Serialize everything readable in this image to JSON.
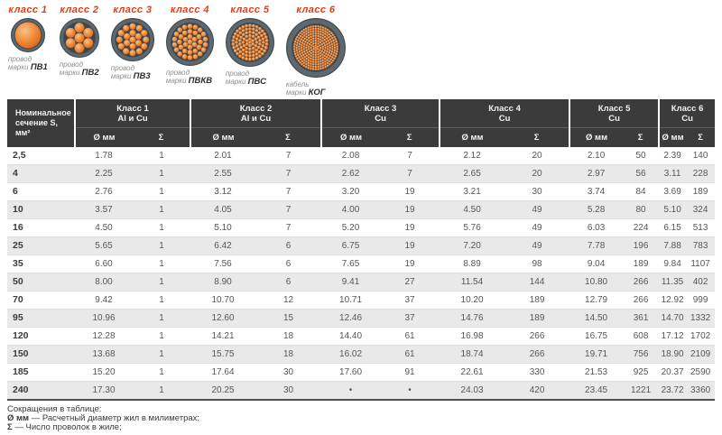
{
  "colors": {
    "class_label_red": "#e63c12",
    "header_bg": "#3b3b3b",
    "row_alt_gray": "#e9e9e9",
    "copper_orange": "#ef8a3a",
    "insulation_gray": "#5e696f"
  },
  "wire_classes": [
    {
      "label": "класс 1",
      "icon": "wire-cross-section-icon",
      "caption_line1": "провод",
      "caption_word": "марки",
      "mark": "ПВ1",
      "strand_rings": 1,
      "size": 38
    },
    {
      "label": "класс 2",
      "icon": "wire-cross-section-icon",
      "caption_line1": "провод",
      "caption_word": "марки",
      "mark": "ПВ2",
      "strand_rings": 2,
      "size": 44
    },
    {
      "label": "класс 3",
      "icon": "wire-cross-section-icon",
      "caption_line1": "провод",
      "caption_word": "марки",
      "mark": "ПВ3",
      "strand_rings": 3,
      "size": 48
    },
    {
      "label": "класс 4",
      "icon": "wire-cross-section-icon",
      "caption_line1": "провод",
      "caption_word": "марки",
      "mark": "ПВКВ",
      "strand_rings": 4,
      "size": 53
    },
    {
      "label": "класс 5",
      "icon": "wire-cross-section-icon",
      "caption_line1": "провод",
      "caption_word": "марки",
      "mark": "ПВС",
      "strand_rings": 6,
      "size": 54
    },
    {
      "label": "класс 6",
      "icon": "wire-cross-section-icon",
      "caption_line1": "кабель",
      "caption_word": "марки",
      "mark": "КОГ",
      "strand_rings": 10,
      "size": 66
    }
  ],
  "table": {
    "col0_header": {
      "line1": "Номинальное",
      "line2": "сечение S, мм²"
    },
    "groups": [
      {
        "title": "Класс 1",
        "subtitle": "Al и Cu"
      },
      {
        "title": "Класс 2",
        "subtitle": "Al и Cu"
      },
      {
        "title": "Класс 3",
        "subtitle": "Cu"
      },
      {
        "title": "Класс 4",
        "subtitle": "Cu"
      },
      {
        "title": "Класс 5",
        "subtitle": "Cu"
      },
      {
        "title": "Класс 6",
        "subtitle": "Cu"
      }
    ],
    "sub_headers": [
      "Ø мм",
      "Σ"
    ],
    "rows": [
      {
        "section": "2,5",
        "values": [
          "1.78",
          "1",
          "2.01",
          "7",
          "2.08",
          "7",
          "2.12",
          "20",
          "2.10",
          "50",
          "2.39",
          "140"
        ]
      },
      {
        "section": "4",
        "values": [
          "2.25",
          "1",
          "2.55",
          "7",
          "2.62",
          "7",
          "2.65",
          "20",
          "2.97",
          "56",
          "3.11",
          "228"
        ]
      },
      {
        "section": "6",
        "values": [
          "2.76",
          "1",
          "3.12",
          "7",
          "3.20",
          "19",
          "3.21",
          "30",
          "3.74",
          "84",
          "3.69",
          "189"
        ]
      },
      {
        "section": "10",
        "values": [
          "3.57",
          "1",
          "4.05",
          "7",
          "4.00",
          "19",
          "4.50",
          "49",
          "5.28",
          "80",
          "5.10",
          "324"
        ]
      },
      {
        "section": "16",
        "values": [
          "4.50",
          "1",
          "5.10",
          "7",
          "5.20",
          "19",
          "5.76",
          "49",
          "6.03",
          "224",
          "6.15",
          "513"
        ]
      },
      {
        "section": "25",
        "values": [
          "5.65",
          "1",
          "6.42",
          "6",
          "6.75",
          "19",
          "7.20",
          "49",
          "7.78",
          "196",
          "7.88",
          "783"
        ]
      },
      {
        "section": "35",
        "values": [
          "6.60",
          "1",
          "7.56",
          "6",
          "7.65",
          "19",
          "8.89",
          "98",
          "9.04",
          "189",
          "9.84",
          "1107"
        ]
      },
      {
        "section": "50",
        "values": [
          "8.00",
          "1",
          "8.90",
          "6",
          "9.41",
          "27",
          "11.54",
          "144",
          "10.80",
          "266",
          "11.35",
          "402"
        ]
      },
      {
        "section": "70",
        "values": [
          "9.42",
          "1",
          "10.70",
          "12",
          "10.71",
          "37",
          "10.20",
          "189",
          "12.79",
          "266",
          "12.92",
          "999"
        ]
      },
      {
        "section": "95",
        "values": [
          "10.96",
          "1",
          "12.60",
          "15",
          "12.46",
          "37",
          "14.76",
          "189",
          "14.50",
          "361",
          "14.70",
          "1332"
        ]
      },
      {
        "section": "120",
        "values": [
          "12.28",
          "1",
          "14.21",
          "18",
          "14.40",
          "61",
          "16.98",
          "266",
          "16.75",
          "608",
          "17.12",
          "1702"
        ]
      },
      {
        "section": "150",
        "values": [
          "13.68",
          "1",
          "15.75",
          "18",
          "16.02",
          "61",
          "18.74",
          "266",
          "19.71",
          "756",
          "18.90",
          "2109"
        ]
      },
      {
        "section": "185",
        "values": [
          "15.20",
          "1",
          "17.64",
          "30",
          "17.60",
          "91",
          "22.61",
          "330",
          "21.53",
          "925",
          "20.37",
          "2590"
        ]
      },
      {
        "section": "240",
        "values": [
          "17.30",
          "1",
          "20.25",
          "30",
          "•",
          "•",
          "24.03",
          "420",
          "23.45",
          "1221",
          "23.72",
          "3360"
        ]
      }
    ]
  },
  "footer": {
    "title": "Сокращения в таблице:",
    "lines": [
      {
        "term": "Ø мм",
        "rest": " — Расчетный диаметр жил в милиметрах;"
      },
      {
        "term": "Σ",
        "rest": " — Число проволок в жиле;"
      }
    ]
  }
}
